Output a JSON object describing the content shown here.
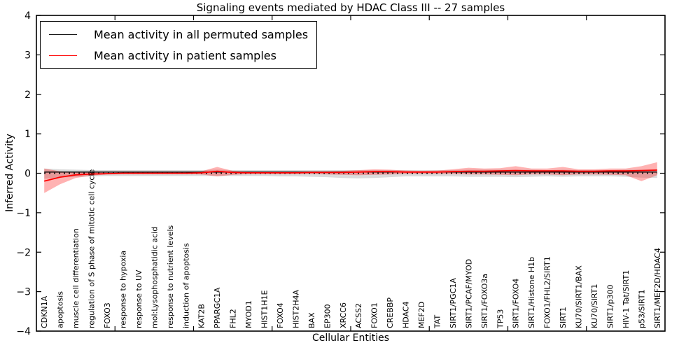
{
  "figure": {
    "title": "Signaling events mediated by HDAC Class III -- 27 samples",
    "xlabel": "Cellular Entities",
    "ylabel": "Inferred Activity"
  },
  "legend": {
    "items": [
      {
        "label": "Mean activity in all permuted samples",
        "color": "#000000"
      },
      {
        "label": "Mean activity in patient samples",
        "color": "#ff0000"
      }
    ]
  },
  "chart_data": {
    "type": "line",
    "title": "Signaling events mediated by HDAC Class III -- 27 samples",
    "xlabel": "Cellular Entities",
    "ylabel": "Inferred Activity",
    "ylim": [
      -4,
      4
    ],
    "ytick_values": [
      4,
      3,
      2,
      1,
      0,
      -1,
      -2,
      -3,
      -4
    ],
    "ytick_labels": [
      "4",
      "3",
      "2",
      "1",
      "0",
      "−1",
      "−2",
      "−3",
      "−4"
    ],
    "grid": false,
    "legend_position": "upper left",
    "categories": [
      "CDKN1A",
      "apoptosis",
      "muscle cell differentiation",
      "regulation of S phase of mitotic cell cycle",
      "FOXO3",
      "response to hypoxia",
      "response to UV",
      "mol:Lysophosphatidic acid",
      "response to nutrient levels",
      "induction of apoptosis",
      "KAT2B",
      "PPARGC1A",
      "FHL2",
      "MYOD1",
      "HIST1H1E",
      "FOXO4",
      "HIST2H4A",
      "BAX",
      "EP300",
      "XRCC6",
      "ACSS2",
      "FOXO1",
      "CREBBP",
      "HDAC4",
      "MEF2D",
      "TAT",
      "SIRT1/PGC1A",
      "SIRT1/PCAF/MYOD",
      "SIRT1/FOXO3a",
      "TP53",
      "SIRT1/FOXO4",
      "SIRT1/Histone H1b",
      "FOXO1/FHL2/SIRT1",
      "SIRT1",
      "KU70/SIRT1/BAX",
      "KU70/SIRT1",
      "SIRT1/p300",
      "HIV-1 Tat/SIRT1",
      "p53/SIRT1",
      "SIRT1/MEF2D/HDAC4"
    ],
    "series": [
      {
        "name": "Mean activity in all permuted samples",
        "color": "#000000",
        "style": "solid",
        "width": 1.4,
        "values": [
          0.03,
          0.03,
          0.03,
          0.03,
          0.03,
          0.03,
          0.03,
          0.03,
          0.03,
          0.03,
          0.03,
          0.03,
          0.03,
          0.03,
          0.03,
          0.03,
          0.03,
          0.03,
          0.03,
          0.03,
          0.03,
          0.03,
          0.03,
          0.03,
          0.03,
          0.03,
          0.03,
          0.03,
          0.03,
          0.03,
          0.03,
          0.03,
          0.03,
          0.03,
          0.03,
          0.03,
          0.03,
          0.03,
          0.03,
          0.03
        ]
      },
      {
        "name": "zero reference (dotted)",
        "color": "#000000",
        "style": "dotted",
        "width": 1.8,
        "values": [
          0,
          0,
          0,
          0,
          0,
          0,
          0,
          0,
          0,
          0,
          0,
          0,
          0,
          0,
          0,
          0,
          0,
          0,
          0,
          0,
          0,
          0,
          0,
          0,
          0,
          0,
          0,
          0,
          0,
          0,
          0,
          0,
          0,
          0,
          0,
          0,
          0,
          0,
          0,
          0
        ]
      },
      {
        "name": "Mean activity in patient samples",
        "color": "#ff0000",
        "style": "solid",
        "width": 1.8,
        "values": [
          -0.2,
          -0.1,
          -0.04,
          -0.02,
          -0.01,
          0.0,
          0.0,
          0.0,
          0.0,
          0.0,
          0.01,
          0.05,
          0.02,
          0.01,
          0.01,
          0.01,
          0.01,
          0.02,
          0.02,
          0.02,
          0.03,
          0.04,
          0.04,
          0.03,
          0.03,
          0.03,
          0.04,
          0.05,
          0.05,
          0.06,
          0.07,
          0.06,
          0.06,
          0.06,
          0.05,
          0.05,
          0.06,
          0.06,
          0.07,
          0.08
        ]
      }
    ],
    "bands": [
      {
        "name": "permuted samples range",
        "color": "#999999",
        "opacity": 0.35,
        "upper": [
          0.12,
          0.1,
          0.09,
          0.08,
          0.08,
          0.08,
          0.08,
          0.08,
          0.08,
          0.08,
          0.08,
          0.09,
          0.08,
          0.08,
          0.08,
          0.08,
          0.08,
          0.08,
          0.08,
          0.08,
          0.08,
          0.08,
          0.08,
          0.08,
          0.08,
          0.08,
          0.08,
          0.09,
          0.09,
          0.09,
          0.09,
          0.09,
          0.08,
          0.09,
          0.08,
          0.08,
          0.08,
          0.09,
          0.09,
          0.1
        ],
        "lower": [
          -0.14,
          -0.11,
          -0.09,
          -0.08,
          -0.07,
          -0.07,
          -0.07,
          -0.07,
          -0.07,
          -0.07,
          -0.07,
          -0.07,
          -0.07,
          -0.07,
          -0.07,
          -0.08,
          -0.08,
          -0.09,
          -0.1,
          -0.12,
          -0.13,
          -0.12,
          -0.1,
          -0.08,
          -0.08,
          -0.08,
          -0.08,
          -0.09,
          -0.09,
          -0.09,
          -0.1,
          -0.09,
          -0.08,
          -0.09,
          -0.08,
          -0.08,
          -0.08,
          -0.09,
          -0.11,
          -0.12
        ]
      },
      {
        "name": "patient samples range",
        "color": "#ff0000",
        "opacity": 0.3,
        "upper": [
          0.12,
          0.05,
          0.03,
          0.02,
          0.02,
          0.02,
          0.02,
          0.02,
          0.02,
          0.03,
          0.05,
          0.16,
          0.06,
          0.03,
          0.03,
          0.03,
          0.04,
          0.05,
          0.05,
          0.06,
          0.08,
          0.1,
          0.09,
          0.07,
          0.06,
          0.07,
          0.1,
          0.14,
          0.12,
          0.13,
          0.18,
          0.12,
          0.12,
          0.16,
          0.1,
          0.1,
          0.12,
          0.12,
          0.18,
          0.28
        ],
        "lower": [
          -0.5,
          -0.28,
          -0.12,
          -0.06,
          -0.03,
          -0.02,
          -0.02,
          -0.02,
          -0.02,
          -0.02,
          -0.03,
          -0.08,
          -0.04,
          -0.02,
          -0.02,
          -0.02,
          -0.02,
          -0.02,
          -0.03,
          -0.04,
          -0.05,
          -0.04,
          -0.03,
          -0.02,
          -0.02,
          -0.02,
          -0.02,
          -0.03,
          -0.03,
          -0.04,
          -0.05,
          -0.03,
          -0.03,
          -0.05,
          -0.03,
          -0.03,
          -0.04,
          -0.05,
          -0.2,
          -0.05
        ]
      }
    ]
  }
}
